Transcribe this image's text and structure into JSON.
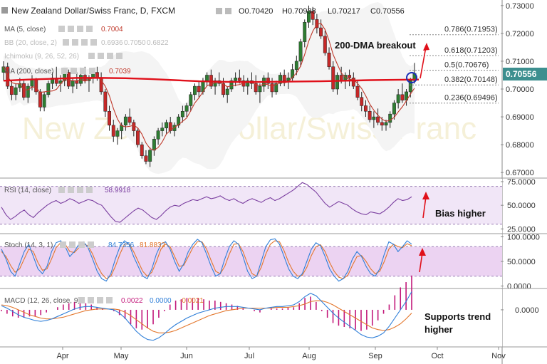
{
  "chart_data": {
    "type": "candlestick",
    "header": {
      "symbol": "New Zealand Dollar/Swiss Franc, D, FXCM",
      "open": "O0.70420",
      "high": "H0.70938",
      "low": "L0.70217",
      "close": "C0.70556"
    },
    "indicator_labels": {
      "ma5": {
        "label": "MA (5, close)",
        "value": "0.7004"
      },
      "bb": {
        "label": "BB (20, close, 2)",
        "values": [
          "0.6936",
          "0.7050",
          "0.6822"
        ]
      },
      "ichimoku": {
        "label": "Ichimoku (9, 26, 52, 26)"
      },
      "ma200": {
        "label": "MA (200, close)",
        "value": "0.7039"
      }
    },
    "watermark": "New Zealand Dollar/Swiss Franc",
    "price_axis": {
      "ticks": [
        "0.73000",
        "0.72000",
        "0.71000",
        "0.70000",
        "0.69000",
        "0.68000",
        "0.67000"
      ],
      "range": [
        0.668,
        0.732
      ]
    },
    "last_price": "0.70556",
    "x_months": [
      "Apr",
      "May",
      "Jun",
      "Jul",
      "Aug",
      "Sep",
      "Oct",
      "Nov"
    ],
    "candles": [
      [
        0.706,
        0.71,
        0.703,
        0.708
      ],
      [
        0.708,
        0.7095,
        0.7,
        0.701
      ],
      [
        0.701,
        0.703,
        0.696,
        0.698
      ],
      [
        0.698,
        0.702,
        0.696,
        0.7005
      ],
      [
        0.7005,
        0.704,
        0.699,
        0.702
      ],
      [
        0.702,
        0.703,
        0.696,
        0.697
      ],
      [
        0.697,
        0.702,
        0.695,
        0.701
      ],
      [
        0.701,
        0.705,
        0.6995,
        0.7035
      ],
      [
        0.7035,
        0.704,
        0.698,
        0.699
      ],
      [
        0.699,
        0.7,
        0.692,
        0.6935
      ],
      [
        0.6935,
        0.699,
        0.692,
        0.698
      ],
      [
        0.698,
        0.703,
        0.697,
        0.702
      ],
      [
        0.702,
        0.706,
        0.7,
        0.704
      ],
      [
        0.704,
        0.708,
        0.701,
        0.702
      ],
      [
        0.702,
        0.705,
        0.699,
        0.703
      ],
      [
        0.703,
        0.707,
        0.701,
        0.706
      ],
      [
        0.706,
        0.707,
        0.7,
        0.701
      ],
      [
        0.701,
        0.704,
        0.6985,
        0.703
      ],
      [
        0.703,
        0.706,
        0.7,
        0.702
      ],
      [
        0.702,
        0.706,
        0.701,
        0.705
      ],
      [
        0.705,
        0.708,
        0.702,
        0.703
      ],
      [
        0.703,
        0.705,
        0.699,
        0.704
      ],
      [
        0.704,
        0.707,
        0.702,
        0.706
      ],
      [
        0.706,
        0.708,
        0.703,
        0.704
      ],
      [
        0.704,
        0.706,
        0.698,
        0.699
      ],
      [
        0.699,
        0.7,
        0.69,
        0.692
      ],
      [
        0.692,
        0.694,
        0.685,
        0.687
      ],
      [
        0.687,
        0.689,
        0.681,
        0.683
      ],
      [
        0.683,
        0.686,
        0.68,
        0.685
      ],
      [
        0.685,
        0.688,
        0.682,
        0.687
      ],
      [
        0.687,
        0.691,
        0.685,
        0.69
      ],
      [
        0.69,
        0.693,
        0.687,
        0.688
      ],
      [
        0.688,
        0.689,
        0.683,
        0.685
      ],
      [
        0.685,
        0.686,
        0.679,
        0.68
      ],
      [
        0.68,
        0.681,
        0.675,
        0.676
      ],
      [
        0.676,
        0.678,
        0.673,
        0.674
      ],
      [
        0.674,
        0.679,
        0.672,
        0.678
      ],
      [
        0.678,
        0.683,
        0.676,
        0.682
      ],
      [
        0.682,
        0.686,
        0.68,
        0.685
      ],
      [
        0.685,
        0.688,
        0.683,
        0.686
      ],
      [
        0.686,
        0.689,
        0.684,
        0.688
      ],
      [
        0.688,
        0.69,
        0.684,
        0.685
      ],
      [
        0.685,
        0.688,
        0.683,
        0.687
      ],
      [
        0.687,
        0.691,
        0.686,
        0.69
      ],
      [
        0.69,
        0.694,
        0.688,
        0.692
      ],
      [
        0.692,
        0.695,
        0.69,
        0.694
      ],
      [
        0.694,
        0.699,
        0.692,
        0.698
      ],
      [
        0.698,
        0.702,
        0.696,
        0.701
      ],
      [
        0.701,
        0.703,
        0.697,
        0.699
      ],
      [
        0.699,
        0.704,
        0.698,
        0.703
      ],
      [
        0.703,
        0.706,
        0.701,
        0.705
      ],
      [
        0.705,
        0.707,
        0.7,
        0.701
      ],
      [
        0.701,
        0.704,
        0.698,
        0.703
      ],
      [
        0.703,
        0.706,
        0.701,
        0.702
      ],
      [
        0.702,
        0.704,
        0.697,
        0.698
      ],
      [
        0.698,
        0.701,
        0.695,
        0.7
      ],
      [
        0.7,
        0.704,
        0.699,
        0.703
      ],
      [
        0.703,
        0.706,
        0.701,
        0.704
      ],
      [
        0.704,
        0.707,
        0.702,
        0.703
      ],
      [
        0.703,
        0.705,
        0.699,
        0.701
      ],
      [
        0.701,
        0.704,
        0.698,
        0.703
      ],
      [
        0.703,
        0.706,
        0.7,
        0.702
      ],
      [
        0.702,
        0.705,
        0.698,
        0.699
      ],
      [
        0.699,
        0.702,
        0.695,
        0.701
      ],
      [
        0.701,
        0.705,
        0.699,
        0.704
      ],
      [
        0.704,
        0.706,
        0.7,
        0.702
      ],
      [
        0.702,
        0.704,
        0.697,
        0.699
      ],
      [
        0.699,
        0.703,
        0.698,
        0.702
      ],
      [
        0.702,
        0.706,
        0.701,
        0.705
      ],
      [
        0.705,
        0.707,
        0.701,
        0.703
      ],
      [
        0.703,
        0.706,
        0.7,
        0.704
      ],
      [
        0.704,
        0.709,
        0.703,
        0.707
      ],
      [
        0.707,
        0.712,
        0.705,
        0.71
      ],
      [
        0.71,
        0.718,
        0.708,
        0.717
      ],
      [
        0.717,
        0.725,
        0.715,
        0.724
      ],
      [
        0.724,
        0.73,
        0.722,
        0.728
      ],
      [
        0.728,
        0.7295,
        0.723,
        0.725
      ],
      [
        0.725,
        0.727,
        0.72,
        0.722
      ],
      [
        0.722,
        0.725,
        0.718,
        0.719
      ],
      [
        0.719,
        0.721,
        0.712,
        0.713
      ],
      [
        0.713,
        0.715,
        0.707,
        0.708
      ],
      [
        0.708,
        0.71,
        0.699,
        0.7
      ],
      [
        0.7,
        0.706,
        0.698,
        0.705
      ],
      [
        0.705,
        0.708,
        0.702,
        0.703
      ],
      [
        0.703,
        0.706,
        0.7,
        0.705
      ],
      [
        0.705,
        0.707,
        0.701,
        0.704
      ],
      [
        0.704,
        0.706,
        0.7,
        0.701
      ],
      [
        0.701,
        0.703,
        0.696,
        0.697
      ],
      [
        0.697,
        0.699,
        0.692,
        0.694
      ],
      [
        0.694,
        0.696,
        0.69,
        0.692
      ],
      [
        0.692,
        0.694,
        0.688,
        0.689
      ],
      [
        0.689,
        0.692,
        0.686,
        0.69
      ],
      [
        0.69,
        0.693,
        0.687,
        0.688
      ],
      [
        0.688,
        0.69,
        0.685,
        0.687
      ],
      [
        0.687,
        0.689,
        0.685,
        0.688
      ],
      [
        0.688,
        0.692,
        0.686,
        0.691
      ],
      [
        0.691,
        0.696,
        0.689,
        0.695
      ],
      [
        0.695,
        0.7,
        0.693,
        0.698
      ],
      [
        0.698,
        0.702,
        0.695,
        0.696
      ],
      [
        0.696,
        0.7,
        0.694,
        0.699
      ],
      [
        0.699,
        0.704,
        0.697,
        0.703
      ],
      [
        0.703,
        0.7094,
        0.702,
        0.7056
      ]
    ],
    "ma200": [
      0.703,
      0.7034,
      0.7037,
      0.704,
      0.704,
      0.7039,
      0.7036,
      0.7032,
      0.7028,
      0.7026,
      0.7025,
      0.7026,
      0.7027,
      0.7028,
      0.703,
      0.7032,
      0.7033,
      0.7034
    ],
    "fibonacci": [
      {
        "label": "0.786(0.71953)",
        "value": 0.71953
      },
      {
        "label": "0.618(0.71203)",
        "value": 0.71203
      },
      {
        "label": "0.5(0.70676)",
        "value": 0.70676
      },
      {
        "label": "0.382(0.70148)",
        "value": 0.70148
      },
      {
        "label": "0.236(0.69496)",
        "value": 0.69496
      }
    ],
    "annotations": {
      "breakout": "200-DMA breakout",
      "rsi": "Bias higher",
      "macd": "Supports trend higher"
    },
    "rsi": {
      "label": "RSI (14, close)",
      "value": "58.9918",
      "ticks": [
        "75.0000",
        "50.0000",
        "25.0000"
      ],
      "upper": 70,
      "lower": 30,
      "values": [
        48,
        40,
        35,
        38,
        42,
        45,
        40,
        37,
        42,
        46,
        50,
        53,
        55,
        52,
        54,
        57,
        55,
        52,
        54,
        56,
        55,
        52,
        50,
        44,
        38,
        33,
        32,
        36,
        40,
        44,
        47,
        45,
        41,
        37,
        35,
        39,
        44,
        48,
        50,
        49,
        52,
        54,
        56,
        55,
        57,
        59,
        57,
        58,
        60,
        57,
        55,
        57,
        54,
        52,
        55,
        57,
        55,
        53,
        56,
        58,
        55,
        57,
        60,
        63,
        66,
        70,
        74,
        72,
        68,
        64,
        58,
        52,
        48,
        51,
        54,
        52,
        50,
        46,
        43,
        41,
        40,
        43,
        42,
        41,
        44,
        48,
        53,
        57,
        55,
        56,
        59
      ]
    },
    "stoch": {
      "label": "Stoch (14, 3, 1)",
      "k_value": "84.7356",
      "d_value": "81.8832",
      "ticks": [
        "100.0000",
        "50.0000",
        "0.0000"
      ],
      "upper": 80,
      "lower": 20,
      "k": [
        75,
        55,
        30,
        20,
        45,
        70,
        85,
        60,
        35,
        25,
        40,
        70,
        88,
        92,
        80,
        60,
        70,
        85,
        90,
        78,
        55,
        30,
        15,
        10,
        25,
        55,
        80,
        92,
        85,
        60,
        40,
        20,
        15,
        35,
        65,
        85,
        90,
        75,
        50,
        30,
        45,
        70,
        85,
        95,
        88,
        65,
        40,
        20,
        25,
        55,
        80,
        92,
        85,
        60,
        30,
        15,
        20,
        50,
        80,
        94,
        96,
        85,
        60,
        35,
        20,
        15,
        25,
        50,
        75,
        88,
        82,
        60,
        35,
        20,
        10,
        15,
        30,
        55,
        70,
        60,
        40,
        25,
        20,
        35,
        65,
        90,
        85,
        70,
        80,
        92,
        85
      ],
      "d": [
        70,
        60,
        42,
        28,
        35,
        55,
        75,
        70,
        48,
        32,
        35,
        55,
        78,
        88,
        85,
        70,
        68,
        78,
        85,
        82,
        65,
        42,
        25,
        15,
        20,
        40,
        65,
        85,
        86,
        70,
        50,
        30,
        20,
        28,
        50,
        75,
        85,
        80,
        60,
        40,
        42,
        60,
        78,
        90,
        90,
        75,
        52,
        30,
        25,
        40,
        65,
        85,
        86,
        70,
        45,
        25,
        20,
        38,
        65,
        85,
        92,
        90,
        72,
        48,
        30,
        20,
        22,
        38,
        62,
        80,
        84,
        70,
        48,
        30,
        18,
        15,
        22,
        42,
        60,
        62,
        50,
        35,
        25,
        30,
        50,
        75,
        85,
        80,
        78,
        86,
        82
      ]
    },
    "macd": {
      "label": "MACD (12, 26, close, 9)",
      "values": [
        "0.0022",
        "0.0000",
        "-0.0021"
      ],
      "ticks": [
        "0.0000"
      ],
      "range": [
        -0.0045,
        0.0025
      ],
      "macd": [
        0.0005,
        0.0002,
        -0.0002,
        -0.0006,
        -0.0009,
        -0.0011,
        -0.0013,
        -0.0014,
        -0.0013,
        -0.0011,
        -0.0008,
        -0.0005,
        -0.0002,
        0.0001,
        0.0003,
        0.0004,
        0.0004,
        0.0003,
        0.0002,
        0.0001,
        0.0,
        -0.0004,
        -0.001,
        -0.0018,
        -0.0026,
        -0.0032,
        -0.0036,
        -0.0037,
        -0.0034,
        -0.0029,
        -0.0023,
        -0.0018,
        -0.0014,
        -0.001,
        -0.0007,
        -0.0004,
        -0.0002,
        0.0,
        0.0002,
        0.0003,
        0.0004,
        0.0004,
        0.0004,
        0.0003,
        0.0002,
        0.0001,
        0.0,
        0.0002,
        0.0003,
        0.0004,
        0.0004,
        0.0005,
        0.0006,
        0.001,
        0.0016,
        0.002,
        0.0017,
        0.001,
        0.0003,
        -0.0004,
        -0.001,
        -0.0015,
        -0.002,
        -0.0025,
        -0.003,
        -0.0033,
        -0.0034,
        -0.0032,
        -0.0028,
        -0.002,
        -0.001,
        0.0,
        0.001,
        0.0022
      ],
      "signal": [
        0.0006,
        0.0005,
        0.0003,
        0.0,
        -0.0003,
        -0.0006,
        -0.0008,
        -0.001,
        -0.0011,
        -0.0011,
        -0.001,
        -0.0009,
        -0.0007,
        -0.0005,
        -0.0003,
        -0.0001,
        0.0,
        0.0001,
        0.0001,
        0.0001,
        0.0001,
        0.0,
        -0.0003,
        -0.0007,
        -0.0012,
        -0.0017,
        -0.0022,
        -0.0026,
        -0.0028,
        -0.0028,
        -0.0027,
        -0.0025,
        -0.0022,
        -0.0019,
        -0.0016,
        -0.0013,
        -0.001,
        -0.0007,
        -0.0005,
        -0.0003,
        -0.0001,
        0.0,
        0.0001,
        0.0002,
        0.0002,
        0.0002,
        0.0002,
        0.0002,
        0.0002,
        0.0003,
        0.0003,
        0.0003,
        0.0004,
        0.0005,
        0.0007,
        0.001,
        0.0011,
        0.0011,
        0.0009,
        0.0006,
        0.0002,
        -0.0002,
        -0.0006,
        -0.001,
        -0.0014,
        -0.0018,
        -0.0022,
        -0.0024,
        -0.0025,
        -0.0024,
        -0.0021,
        -0.0017,
        -0.0011,
        -0.0004
      ]
    }
  }
}
